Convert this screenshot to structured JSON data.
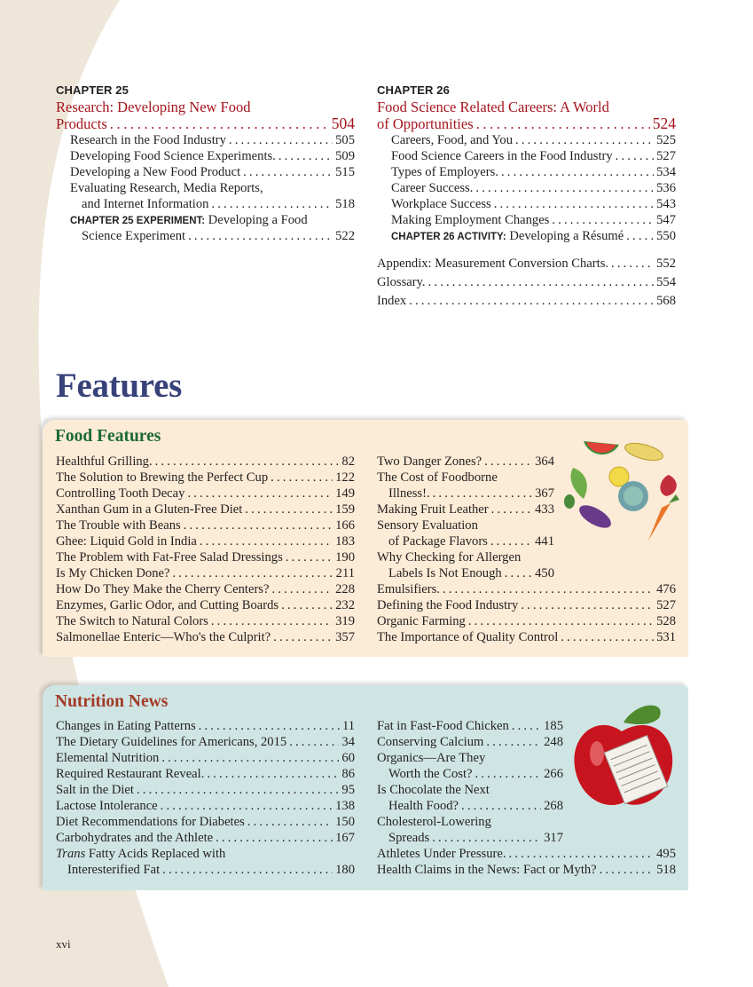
{
  "colors": {
    "chapter_title": "#a5151d",
    "features_heading": "#37427a",
    "food_features_title": "#1c6a36",
    "nutrition_news_title": "#a23a26",
    "food_box_bg": "#fcebd6",
    "nutrition_box_bg": "#cfe5e4",
    "page_margin_bg": "#efe6da"
  },
  "chapter25": {
    "label": "CHAPTER 25",
    "title_line1": "Research: Developing New Food",
    "title_line2": "Products",
    "page": "504",
    "entries": [
      {
        "title": "Research in the Food Industry",
        "page": "505"
      },
      {
        "title": "Developing Food Science Experiments.",
        "page": "509"
      },
      {
        "title": "Developing a New Food Product",
        "page": "515"
      },
      {
        "title": "Evaluating Research, Media Reports,",
        "cont": "and Internet Information",
        "page": "518"
      }
    ],
    "experiment": {
      "label": "CHAPTER 25 EXPERIMENT:",
      "title": " Developing a Food",
      "cont": "Science Experiment",
      "page": "522"
    }
  },
  "chapter26": {
    "label": "CHAPTER 26",
    "title_line1": "Food Science Related Careers: A World",
    "title_line2": "of Opportunities",
    "page": "524",
    "entries": [
      {
        "title": "Careers, Food, and You",
        "page": "525"
      },
      {
        "title": "Food Science Careers in the Food Industry",
        "page": "527"
      },
      {
        "title": "Types of Employers.",
        "page": "534"
      },
      {
        "title": "Career Success.",
        "page": "536"
      },
      {
        "title": "Workplace Success",
        "page": "543"
      },
      {
        "title": "Making Employment Changes",
        "page": "547"
      }
    ],
    "activity": {
      "label": "CHAPTER 26 ACTIVITY:",
      "title": " Developing a Résumé",
      "page": "550"
    }
  },
  "back_matter": [
    {
      "title": "Appendix: Measurement Conversion Charts.",
      "page": "552"
    },
    {
      "title": "Glossary.",
      "page": "554"
    },
    {
      "title": "Index",
      "page": "568"
    }
  ],
  "features_heading": "Features",
  "food_features": {
    "title": "Food Features",
    "left": [
      {
        "title": "Healthful Grilling.",
        "page": "82"
      },
      {
        "title": "The Solution to Brewing the Perfect Cup",
        "page": "122"
      },
      {
        "title": "Controlling Tooth Decay",
        "page": "149"
      },
      {
        "title": "Xanthan Gum in a Gluten-Free Diet",
        "page": "159"
      },
      {
        "title": "The Trouble with Beans",
        "page": "166"
      },
      {
        "title": "Ghee: Liquid Gold in India",
        "page": "183"
      },
      {
        "title": "The Problem with Fat-Free Salad Dressings",
        "page": "190"
      },
      {
        "title": "Is My Chicken Done?",
        "page": "211"
      },
      {
        "title": "How Do They Make the Cherry Centers?",
        "page": "228"
      },
      {
        "title": "Enzymes, Garlic Odor, and Cutting Boards",
        "page": "232"
      },
      {
        "title": "The Switch to Natural Colors",
        "page": "319"
      },
      {
        "title": "Salmonellae Enteric—Who's the Culprit?",
        "page": "357"
      }
    ],
    "right_narrow": [
      {
        "title": "Two Danger Zones?",
        "page": "364"
      },
      {
        "title": "The Cost of Foodborne",
        "cont": "Illness!.",
        "page": "367"
      },
      {
        "title": "Making Fruit Leather",
        "page": "433"
      },
      {
        "title": "Sensory Evaluation",
        "cont": "of Package Flavors",
        "page": "441"
      },
      {
        "title": "Why Checking for Allergen",
        "cont": "Labels Is Not Enough",
        "page": "450"
      }
    ],
    "right": [
      {
        "title": "Emulsifiers.",
        "page": "476"
      },
      {
        "title": "Defining the Food Industry",
        "page": "527"
      },
      {
        "title": "Organic Farming",
        "page": "528"
      },
      {
        "title": "The Importance of Quality Control",
        "page": "531"
      }
    ],
    "image": "fruits-and-vegetables-illustration"
  },
  "nutrition_news": {
    "title": "Nutrition News",
    "left": [
      {
        "title": "Changes in Eating Patterns",
        "page": "11"
      },
      {
        "title": "The Dietary Guidelines for Americans, 2015",
        "page": "34"
      },
      {
        "title": "Elemental Nutrition",
        "page": "60"
      },
      {
        "title": "Required Restaurant Reveal.",
        "page": "86"
      },
      {
        "title": "Salt in the Diet",
        "page": "95"
      },
      {
        "title": "Lactose Intolerance",
        "page": "138"
      },
      {
        "title": "Diet Recommendations for Diabetes",
        "page": "150"
      },
      {
        "title": "Carbohydrates and the Athlete",
        "page": "167"
      },
      {
        "title": "Trans Fatty Acids Replaced with",
        "italic_prefix": "Trans",
        "cont": "Interesterified Fat",
        "page": "180"
      }
    ],
    "right_narrow": [
      {
        "title": "Fat in Fast-Food Chicken",
        "page": "185"
      },
      {
        "title": "Conserving Calcium",
        "page": "248"
      },
      {
        "title": "Organics—Are They",
        "cont": "Worth the Cost?",
        "page": "266"
      },
      {
        "title": "Is Chocolate the Next",
        "cont": "Health Food?",
        "page": "268"
      },
      {
        "title": "Cholesterol-Lowering",
        "cont": "Spreads",
        "page": "317"
      }
    ],
    "right": [
      {
        "title": "Athletes Under Pressure.",
        "page": "495"
      },
      {
        "title": "Health Claims in the News: Fact or Myth?",
        "page": "518"
      }
    ],
    "image": "apple-with-nutrition-label-illustration"
  },
  "page_number": "xvi"
}
